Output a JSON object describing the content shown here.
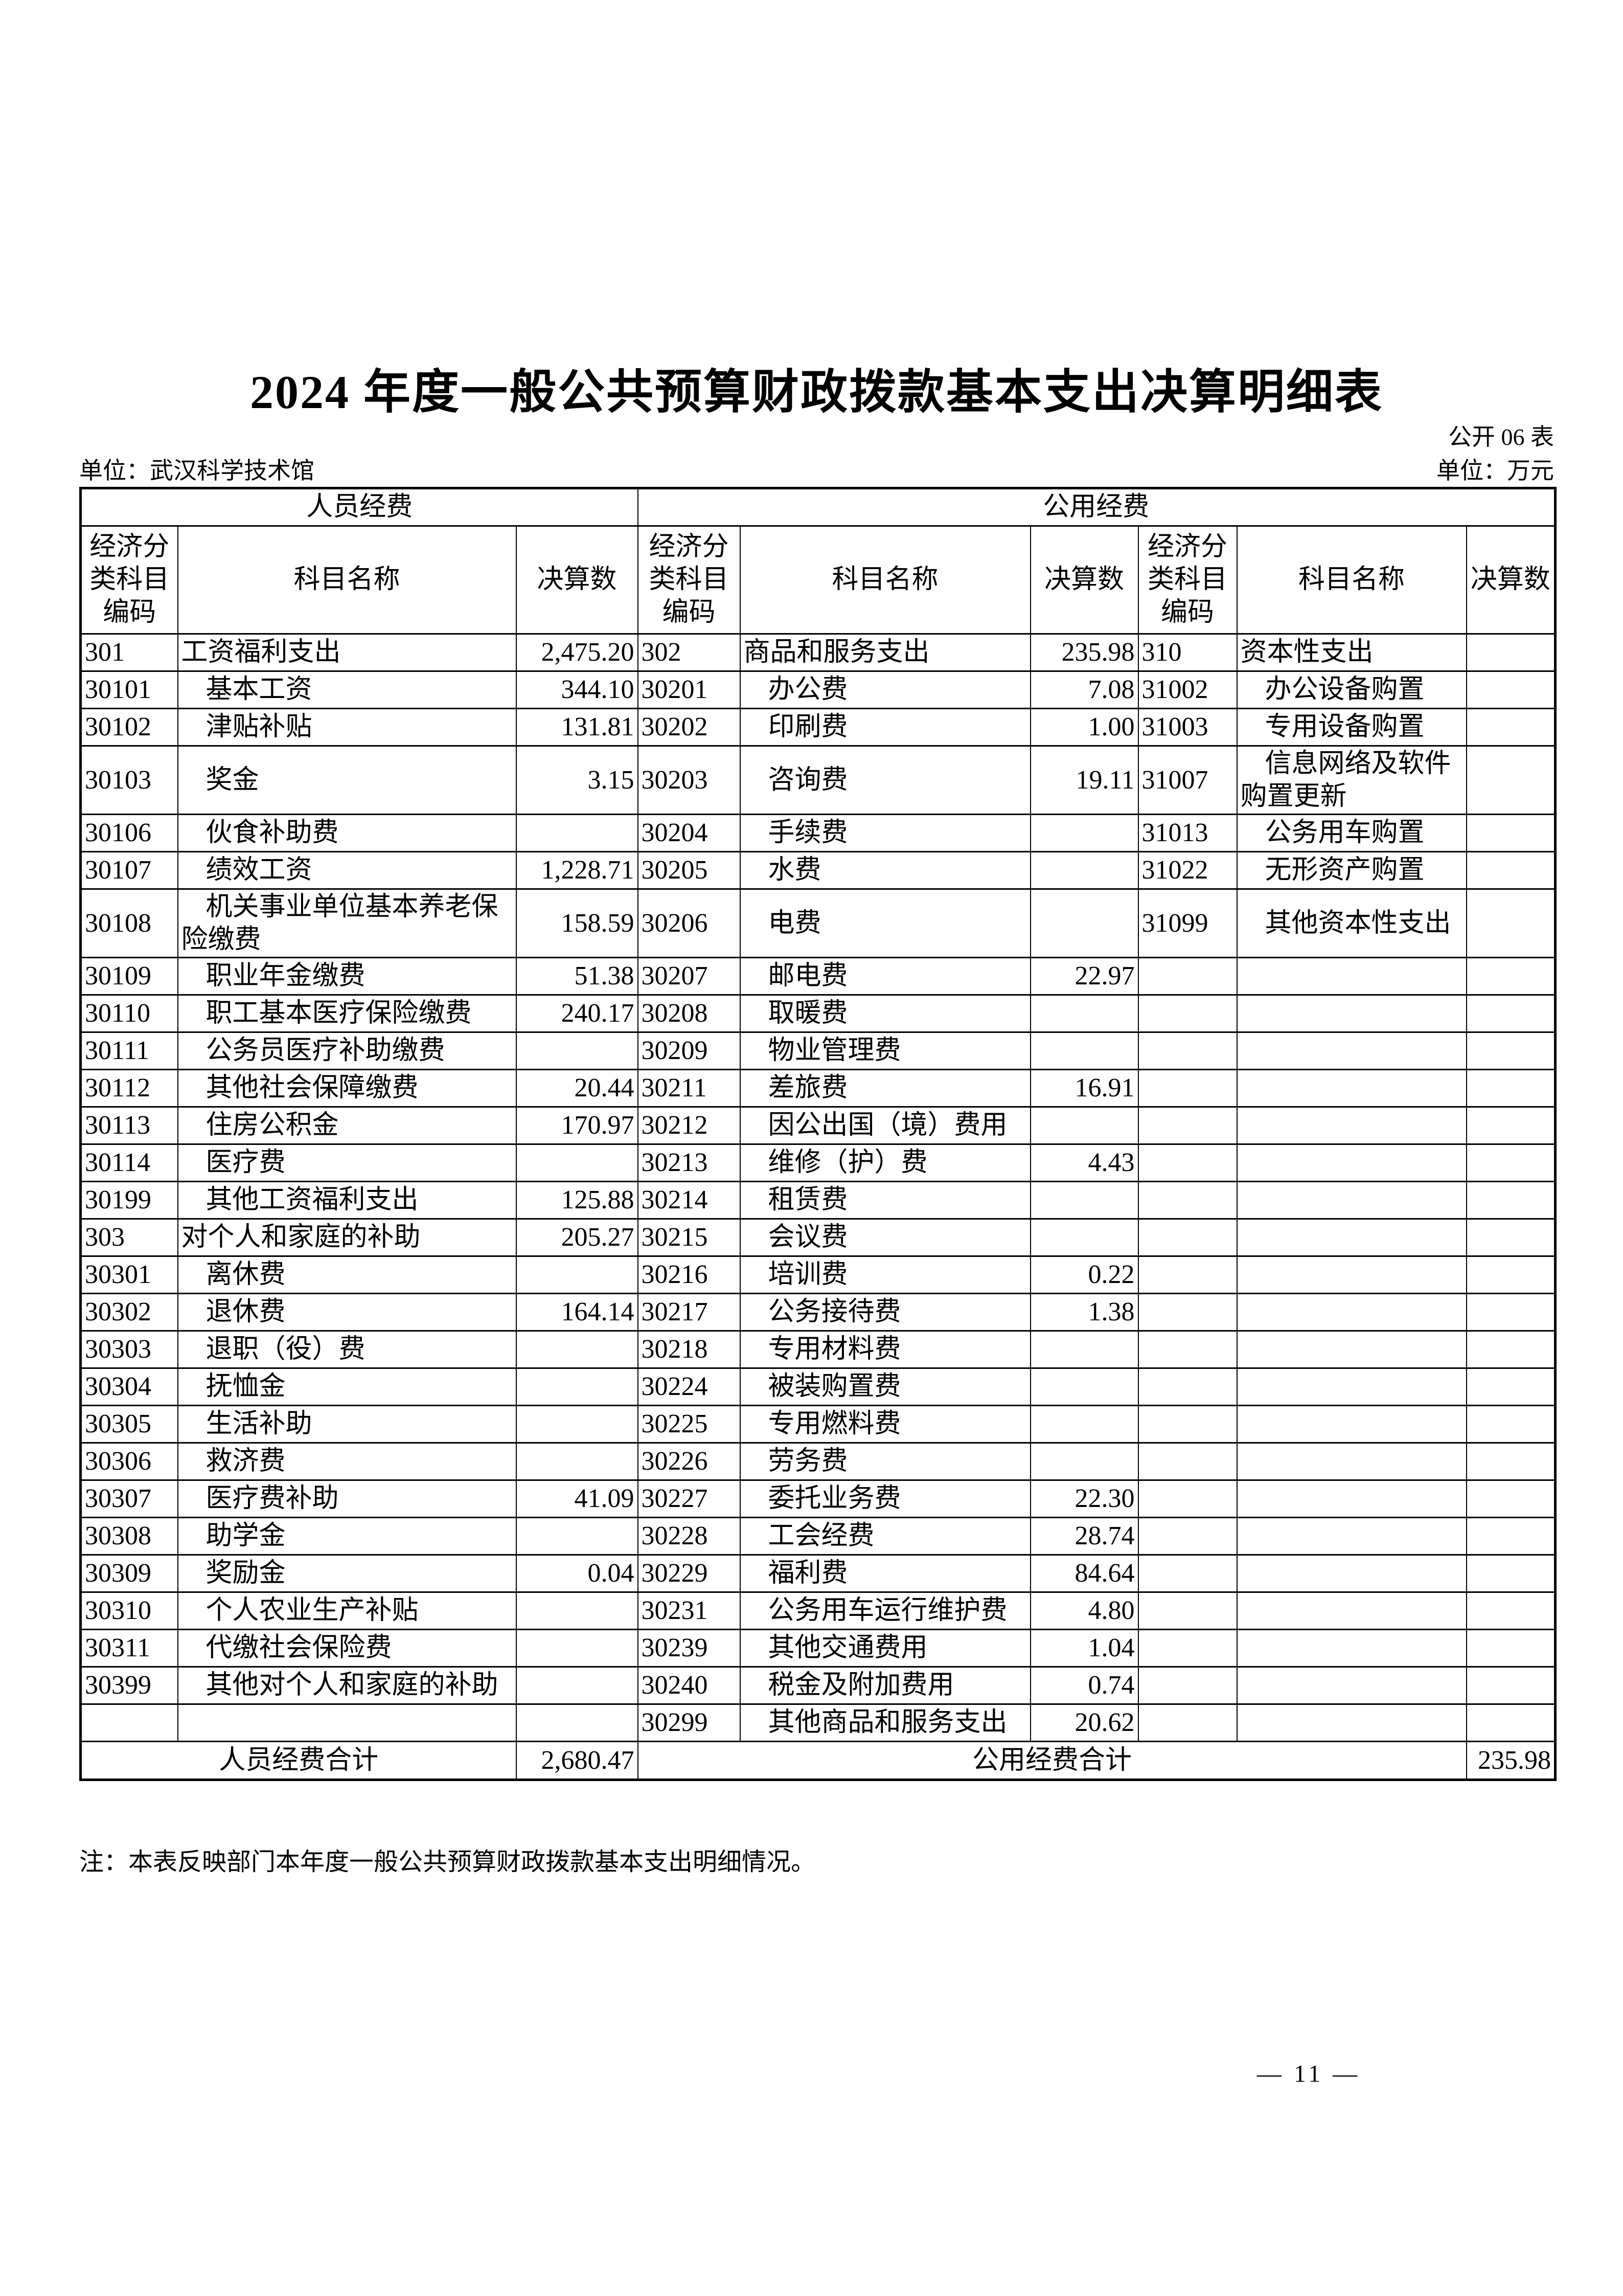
{
  "page": {
    "title": "2024 年度一般公共预算财政拨款基本支出决算明细表",
    "form_label": "公开 06 表",
    "unit_name": "单位：武汉科学技术馆",
    "unit_measure": "单位：万元",
    "note": "注：本表反映部门本年度一般公共预算财政拨款基本支出明细情况。",
    "page_number": "— 11 —"
  },
  "table": {
    "sections": [
      "人员经费",
      "公用经费"
    ],
    "column_headers": [
      "经济分类科目编码",
      "科目名称",
      "决算数",
      "经济分类科目编码",
      "科目名称",
      "决算数",
      "经济分类科目编码",
      "科目名称",
      "决算数"
    ],
    "rows": [
      {
        "cells": [
          "301",
          "工资福利支出",
          "2,475.20",
          "302",
          "商品和服务支出",
          "235.98",
          "310",
          "资本性支出",
          ""
        ],
        "ind": [
          0,
          0,
          0
        ],
        "tall": false
      },
      {
        "cells": [
          "30101",
          "基本工资",
          "344.10",
          "30201",
          "办公费",
          "7.08",
          "31002",
          "办公设备购置",
          ""
        ],
        "ind": [
          1,
          1,
          1
        ],
        "tall": false
      },
      {
        "cells": [
          "30102",
          "津贴补贴",
          "131.81",
          "30202",
          "印刷费",
          "1.00",
          "31003",
          "专用设备购置",
          ""
        ],
        "ind": [
          1,
          1,
          1
        ],
        "tall": false
      },
      {
        "cells": [
          "30103",
          "奖金",
          "3.15",
          "30203",
          "咨询费",
          "19.11",
          "31007",
          "信息网络及软件购置更新",
          ""
        ],
        "ind": [
          1,
          1,
          1
        ],
        "tall": true
      },
      {
        "cells": [
          "30106",
          "伙食补助费",
          "",
          "30204",
          "手续费",
          "",
          "31013",
          "公务用车购置",
          ""
        ],
        "ind": [
          1,
          1,
          1
        ],
        "tall": false
      },
      {
        "cells": [
          "30107",
          "绩效工资",
          "1,228.71",
          "30205",
          "水费",
          "",
          "31022",
          "无形资产购置",
          ""
        ],
        "ind": [
          1,
          1,
          1
        ],
        "tall": false
      },
      {
        "cells": [
          "30108",
          "机关事业单位基本养老保险缴费",
          "158.59",
          "30206",
          "电费",
          "",
          "31099",
          "其他资本性支出",
          ""
        ],
        "ind": [
          1,
          1,
          1
        ],
        "tall": true
      },
      {
        "cells": [
          "30109",
          "职业年金缴费",
          "51.38",
          "30207",
          "邮电费",
          "22.97",
          "",
          "",
          ""
        ],
        "ind": [
          1,
          1,
          1
        ],
        "tall": false
      },
      {
        "cells": [
          "30110",
          "职工基本医疗保险缴费",
          "240.17",
          "30208",
          "取暖费",
          "",
          "",
          "",
          ""
        ],
        "ind": [
          1,
          1,
          1
        ],
        "tall": false
      },
      {
        "cells": [
          "30111",
          "公务员医疗补助缴费",
          "",
          "30209",
          "物业管理费",
          "",
          "",
          "",
          ""
        ],
        "ind": [
          1,
          1,
          1
        ],
        "tall": false
      },
      {
        "cells": [
          "30112",
          "其他社会保障缴费",
          "20.44",
          "30211",
          "差旅费",
          "16.91",
          "",
          "",
          ""
        ],
        "ind": [
          1,
          1,
          1
        ],
        "tall": false
      },
      {
        "cells": [
          "30113",
          "住房公积金",
          "170.97",
          "30212",
          "因公出国（境）费用",
          "",
          "",
          "",
          ""
        ],
        "ind": [
          1,
          1,
          1
        ],
        "tall": false
      },
      {
        "cells": [
          "30114",
          "医疗费",
          "",
          "30213",
          "维修（护）费",
          "4.43",
          "",
          "",
          ""
        ],
        "ind": [
          1,
          1,
          1
        ],
        "tall": false
      },
      {
        "cells": [
          "30199",
          "其他工资福利支出",
          "125.88",
          "30214",
          "租赁费",
          "",
          "",
          "",
          ""
        ],
        "ind": [
          1,
          1,
          1
        ],
        "tall": false
      },
      {
        "cells": [
          "303",
          "对个人和家庭的补助",
          "205.27",
          "30215",
          "会议费",
          "",
          "",
          "",
          ""
        ],
        "ind": [
          0,
          1,
          1
        ],
        "tall": false
      },
      {
        "cells": [
          "30301",
          "离休费",
          "",
          "30216",
          "培训费",
          "0.22",
          "",
          "",
          ""
        ],
        "ind": [
          1,
          1,
          1
        ],
        "tall": false
      },
      {
        "cells": [
          "30302",
          "退休费",
          "164.14",
          "30217",
          "公务接待费",
          "1.38",
          "",
          "",
          ""
        ],
        "ind": [
          1,
          1,
          1
        ],
        "tall": false
      },
      {
        "cells": [
          "30303",
          "退职（役）费",
          "",
          "30218",
          "专用材料费",
          "",
          "",
          "",
          ""
        ],
        "ind": [
          1,
          1,
          1
        ],
        "tall": false
      },
      {
        "cells": [
          "30304",
          "抚恤金",
          "",
          "30224",
          "被装购置费",
          "",
          "",
          "",
          ""
        ],
        "ind": [
          1,
          1,
          1
        ],
        "tall": false
      },
      {
        "cells": [
          "30305",
          "生活补助",
          "",
          "30225",
          "专用燃料费",
          "",
          "",
          "",
          ""
        ],
        "ind": [
          1,
          1,
          1
        ],
        "tall": false
      },
      {
        "cells": [
          "30306",
          "救济费",
          "",
          "30226",
          "劳务费",
          "",
          "",
          "",
          ""
        ],
        "ind": [
          1,
          1,
          1
        ],
        "tall": false
      },
      {
        "cells": [
          "30307",
          "医疗费补助",
          "41.09",
          "30227",
          "委托业务费",
          "22.30",
          "",
          "",
          ""
        ],
        "ind": [
          1,
          1,
          1
        ],
        "tall": false
      },
      {
        "cells": [
          "30308",
          "助学金",
          "",
          "30228",
          "工会经费",
          "28.74",
          "",
          "",
          ""
        ],
        "ind": [
          1,
          1,
          1
        ],
        "tall": false
      },
      {
        "cells": [
          "30309",
          "奖励金",
          "0.04",
          "30229",
          "福利费",
          "84.64",
          "",
          "",
          ""
        ],
        "ind": [
          1,
          1,
          1
        ],
        "tall": false
      },
      {
        "cells": [
          "30310",
          "个人农业生产补贴",
          "",
          "30231",
          "公务用车运行维护费",
          "4.80",
          "",
          "",
          ""
        ],
        "ind": [
          1,
          1,
          1
        ],
        "tall": false
      },
      {
        "cells": [
          "30311",
          "代缴社会保险费",
          "",
          "30239",
          "其他交通费用",
          "1.04",
          "",
          "",
          ""
        ],
        "ind": [
          1,
          1,
          1
        ],
        "tall": false
      },
      {
        "cells": [
          "30399",
          "其他对个人和家庭的补助",
          "",
          "30240",
          "税金及附加费用",
          "0.74",
          "",
          "",
          ""
        ],
        "ind": [
          1,
          1,
          1
        ],
        "tall": false
      },
      {
        "cells": [
          "",
          "",
          "",
          "30299",
          "其他商品和服务支出",
          "20.62",
          "",
          "",
          ""
        ],
        "ind": [
          0,
          1,
          0
        ],
        "tall": false
      }
    ],
    "total_row": {
      "left_label": "人员经费合计",
      "left_value": "2,680.47",
      "right_label": "公用经费合计",
      "right_value": "235.98"
    }
  }
}
